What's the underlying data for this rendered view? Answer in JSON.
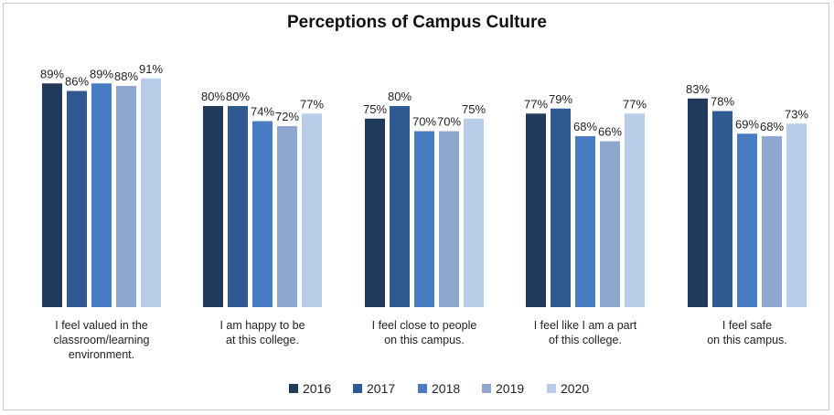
{
  "chart_data": {
    "type": "bar",
    "title": "Perceptions of Campus Culture",
    "categories": [
      [
        "I feel valued in the",
        "classroom/learning",
        "environment."
      ],
      [
        "I am happy to be",
        "at this college."
      ],
      [
        "I feel close to people",
        "on this campus."
      ],
      [
        "I feel like I am a part",
        "of this college."
      ],
      [
        "I feel safe",
        "on this campus."
      ]
    ],
    "series": [
      {
        "name": "2016",
        "color": "#213a5c",
        "values": [
          89,
          80,
          75,
          77,
          83
        ]
      },
      {
        "name": "2017",
        "color": "#2f5991",
        "values": [
          86,
          80,
          80,
          79,
          78
        ]
      },
      {
        "name": "2018",
        "color": "#4a7cc4",
        "values": [
          89,
          74,
          70,
          68,
          69
        ]
      },
      {
        "name": "2019",
        "color": "#8fa6cf",
        "values": [
          88,
          72,
          70,
          66,
          68
        ]
      },
      {
        "name": "2020",
        "color": "#bacde8",
        "values": [
          91,
          77,
          75,
          77,
          73
        ]
      }
    ],
    "value_suffix": "%",
    "ylim": [
      0,
      100
    ],
    "grid": false,
    "legend": "bottom"
  }
}
